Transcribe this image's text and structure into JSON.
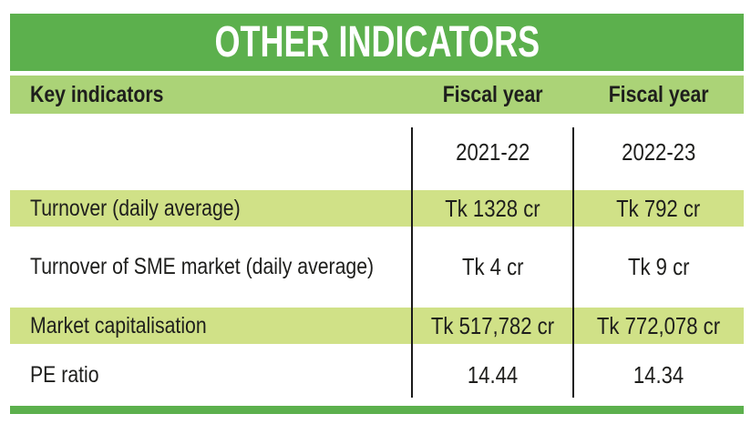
{
  "title": "OTHER INDICATORS",
  "colors": {
    "title_band": "#5cb04d",
    "header_band": "#abd377",
    "highlight_band": "#d0e187",
    "text": "#1e1e1c",
    "title_text": "#ffffff"
  },
  "table": {
    "header": {
      "col1": "Key indicators",
      "col2": "Fiscal year",
      "col3": "Fiscal year"
    },
    "subheader": {
      "col2": "2021-22",
      "col3": "2022-23"
    },
    "rows": [
      {
        "label": "Turnover (daily average)",
        "fy_2021_22": "Tk 1328 cr",
        "fy_2022_23": "Tk 792 cr",
        "highlighted": true
      },
      {
        "label": "Turnover of SME market (daily average)",
        "fy_2021_22": "Tk 4 cr",
        "fy_2022_23": "Tk 9 cr",
        "highlighted": false
      },
      {
        "label": "Market capitalisation",
        "fy_2021_22": "Tk 517,782 cr",
        "fy_2022_23": "Tk 772,078 cr",
        "highlighted": true
      },
      {
        "label": "PE ratio",
        "fy_2021_22": "14.44",
        "fy_2022_23": "14.34",
        "highlighted": false
      }
    ]
  },
  "chart_data": {
    "type": "table",
    "title": "OTHER INDICATORS",
    "columns": [
      "Key indicators",
      "Fiscal year 2021-22",
      "Fiscal year 2022-23"
    ],
    "rows": [
      [
        "Turnover (daily average)",
        "Tk 1328 cr",
        "Tk 792 cr"
      ],
      [
        "Turnover of SME market (daily average)",
        "Tk 4 cr",
        "Tk 9 cr"
      ],
      [
        "Market capitalisation",
        "Tk 517,782 cr",
        "Tk 772,078 cr"
      ],
      [
        "PE ratio",
        "14.44",
        "14.34"
      ]
    ],
    "layout": {
      "title_bar_color": "#5cb04d",
      "header_row_color": "#abd377",
      "striped_row_color": "#d0e187",
      "column_dividers": true,
      "bottom_bar_color": "#5cb04d"
    }
  }
}
